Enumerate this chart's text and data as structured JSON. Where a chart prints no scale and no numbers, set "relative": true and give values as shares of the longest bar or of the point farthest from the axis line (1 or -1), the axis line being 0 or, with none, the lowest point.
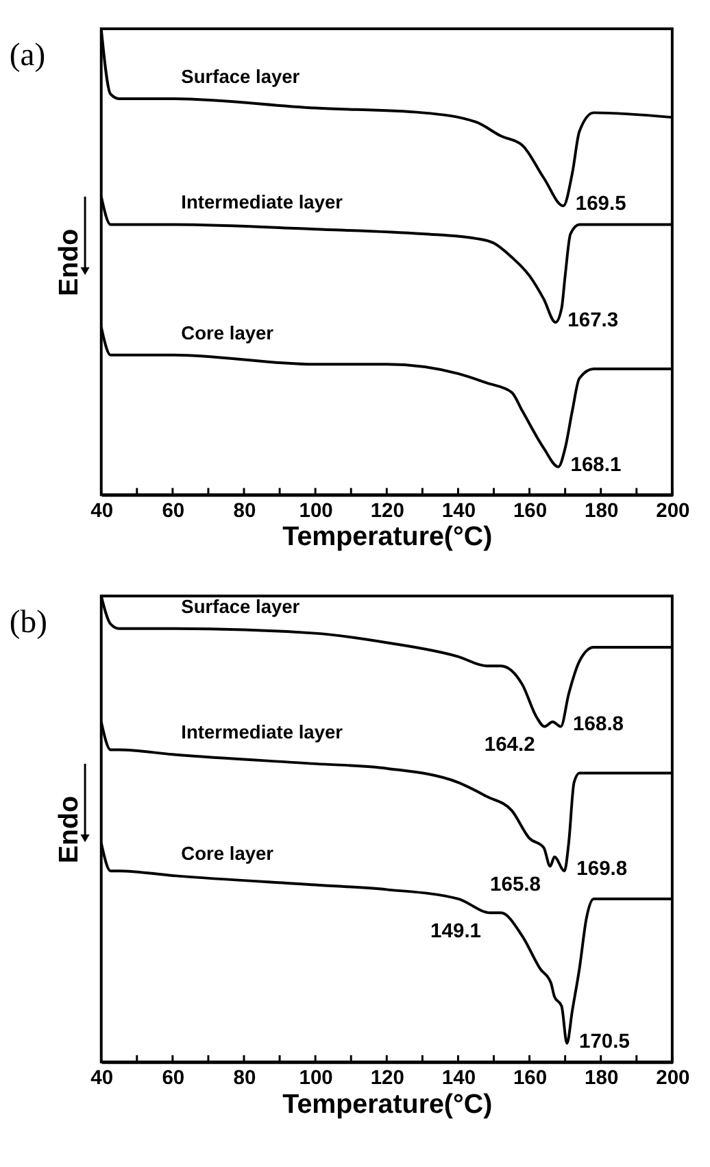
{
  "chart_data": [
    {
      "type": "line",
      "title": "(a)",
      "xlabel": "Temperature(°C)",
      "ylabel": "Endo",
      "relative": true,
      "xlim": [
        40,
        200
      ],
      "xticks": [
        40,
        {
          "value": 50,
          "label": null
        },
        60,
        {
          "value": 70,
          "label": null
        },
        80,
        {
          "value": 90,
          "label": null
        },
        100,
        {
          "value": 110,
          "label": null
        },
        120,
        {
          "value": 130,
          "label": null
        },
        140,
        {
          "value": 150,
          "label": null
        },
        160,
        {
          "value": 170,
          "label": null
        },
        180,
        {
          "value": 190,
          "label": null
        },
        200
      ],
      "legend": false,
      "grid": false,
      "series": [
        {
          "name": "Surface layer",
          "color": "#000000",
          "x": [
            40,
            42.6,
            45,
            60,
            100,
            130,
            145,
            152,
            158,
            164,
            169.5,
            172,
            174,
            178,
            200
          ],
          "values": [
            1.0,
            0.86,
            0.85,
            0.85,
            0.83,
            0.82,
            0.8,
            0.77,
            0.75,
            0.68,
            0.62,
            0.69,
            0.78,
            0.82,
            0.81
          ]
        },
        {
          "name": "Intermediate layer",
          "color": "#000000",
          "x": [
            40,
            42.6,
            60,
            100,
            130,
            145,
            150,
            155,
            160,
            164,
            167.3,
            169,
            170,
            171.5,
            174,
            200
          ],
          "values": [
            0.64,
            0.58,
            0.58,
            0.57,
            0.56,
            0.55,
            0.54,
            0.51,
            0.47,
            0.42,
            0.37,
            0.4,
            0.47,
            0.56,
            0.58,
            0.58
          ]
        },
        {
          "name": "Core layer",
          "color": "#000000",
          "x": [
            40,
            42.6,
            45,
            60,
            100,
            120,
            140,
            148,
            155,
            158,
            164,
            168.1,
            170,
            172,
            174,
            178,
            200
          ],
          "values": [
            0.36,
            0.3,
            0.3,
            0.3,
            0.28,
            0.28,
            0.26,
            0.24,
            0.22,
            0.18,
            0.1,
            0.06,
            0.1,
            0.18,
            0.25,
            0.27,
            0.27
          ]
        }
      ],
      "annotations": [
        {
          "text": "169.5",
          "x": 169.5,
          "y": 0.62
        },
        {
          "text": "167.3",
          "x": 167.3,
          "y": 0.37
        },
        {
          "text": "168.1",
          "x": 168.1,
          "y": 0.06
        }
      ]
    },
    {
      "type": "line",
      "title": "(b)",
      "xlabel": "Temperature(°C)",
      "ylabel": "Endo",
      "relative": true,
      "xlim": [
        40,
        200
      ],
      "xticks": [
        40,
        {
          "value": 50,
          "label": null
        },
        60,
        {
          "value": 70,
          "label": null
        },
        80,
        {
          "value": 90,
          "label": null
        },
        100,
        {
          "value": 110,
          "label": null
        },
        120,
        {
          "value": 130,
          "label": null
        },
        140,
        {
          "value": 150,
          "label": null
        },
        160,
        {
          "value": 170,
          "label": null
        },
        180,
        {
          "value": 190,
          "label": null
        },
        200
      ],
      "legend": false,
      "grid": false,
      "series": [
        {
          "name": "Surface layer",
          "color": "#000000",
          "x": [
            40,
            42.6,
            45,
            60,
            100,
            120,
            140,
            148,
            152,
            158,
            162,
            164.2,
            166.5,
            168.8,
            171,
            174,
            178,
            200
          ],
          "values": [
            1.0,
            0.94,
            0.93,
            0.93,
            0.92,
            0.9,
            0.87,
            0.85,
            0.85,
            0.81,
            0.74,
            0.72,
            0.73,
            0.72,
            0.79,
            0.86,
            0.89,
            0.89
          ]
        },
        {
          "name": "Intermediate layer",
          "color": "#000000",
          "x": [
            40,
            42.6,
            45,
            60,
            100,
            120,
            140,
            148,
            155,
            160,
            164,
            165.8,
            167,
            169.8,
            171,
            172.5,
            174,
            178,
            200
          ],
          "values": [
            0.73,
            0.67,
            0.67,
            0.66,
            0.64,
            0.63,
            0.6,
            0.57,
            0.54,
            0.48,
            0.46,
            0.42,
            0.44,
            0.41,
            0.47,
            0.6,
            0.62,
            0.62,
            0.62
          ]
        },
        {
          "name": "Core layer",
          "color": "#000000",
          "x": [
            40,
            42.6,
            45,
            60,
            100,
            120,
            140,
            149.1,
            152,
            158,
            163,
            166,
            167,
            169,
            170.5,
            172,
            174,
            176,
            178,
            200
          ],
          "values": [
            0.47,
            0.41,
            0.41,
            0.4,
            0.38,
            0.37,
            0.35,
            0.32,
            0.32,
            0.27,
            0.2,
            0.17,
            0.14,
            0.12,
            0.04,
            0.11,
            0.2,
            0.31,
            0.35,
            0.35
          ]
        }
      ],
      "annotations": [
        {
          "text": "164.2",
          "x": 164.2,
          "y": 0.72
        },
        {
          "text": "168.8",
          "x": 168.8,
          "y": 0.72
        },
        {
          "text": "165.8",
          "x": 165.8,
          "y": 0.42
        },
        {
          "text": "169.8",
          "x": 169.8,
          "y": 0.41
        },
        {
          "text": "149.1",
          "x": 149.1,
          "y": 0.32
        },
        {
          "text": "170.5",
          "x": 170.5,
          "y": 0.04
        }
      ]
    }
  ]
}
